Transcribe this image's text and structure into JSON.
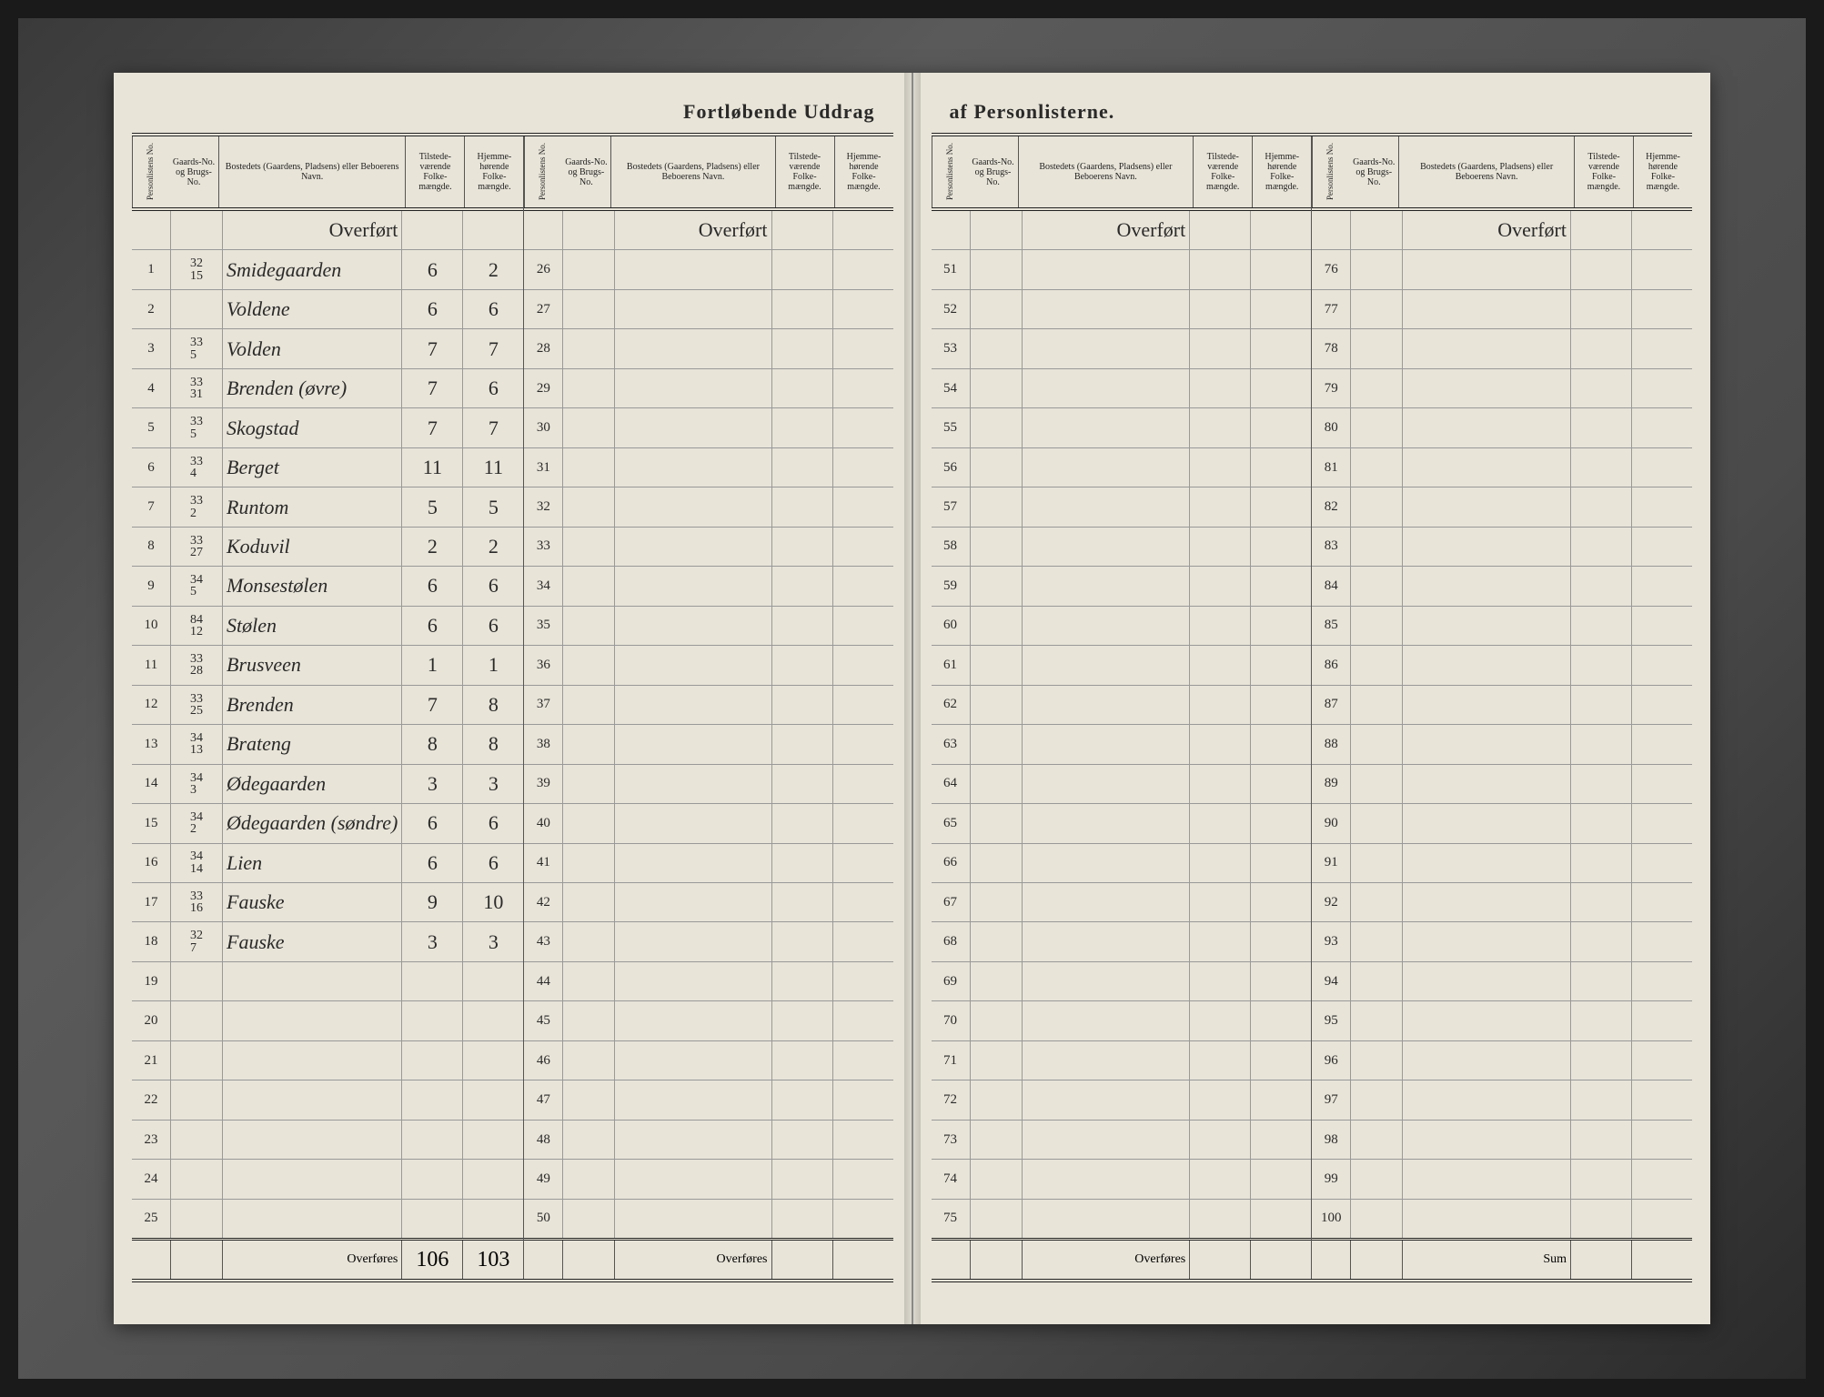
{
  "title_left": "Fortløbende Uddrag",
  "title_right": "af Personlisterne.",
  "headers": {
    "personliste_no": "Personlistens No.",
    "gaards_no": "Gaards-No. og Brugs-No.",
    "bosted": "Bostedets (Gaardens, Pladsens) eller Beboerens Navn.",
    "tilstede": "Tilstede-værende Folke-mængde.",
    "hjemme": "Hjemme-hørende Folke-mængde."
  },
  "overfort_label": "Overført",
  "overfores_label": "Overføres",
  "sum_label": "Sum",
  "blocks": [
    {
      "start": 1,
      "end": 25,
      "rows": [
        {
          "no": 1,
          "g1": "32",
          "g2": "15",
          "name": "Smidegaarden",
          "t": "6",
          "h": "2"
        },
        {
          "no": 2,
          "g1": "",
          "g2": "",
          "name": "Voldene",
          "t": "6",
          "h": "6"
        },
        {
          "no": 3,
          "g1": "33",
          "g2": "5",
          "name": "Volden",
          "t": "7",
          "h": "7"
        },
        {
          "no": 4,
          "g1": "33",
          "g2": "31",
          "name": "Brenden (øvre)",
          "t": "7",
          "h": "6"
        },
        {
          "no": 5,
          "g1": "33",
          "g2": "5",
          "name": "Skogstad",
          "t": "7",
          "h": "7"
        },
        {
          "no": 6,
          "g1": "33",
          "g2": "4",
          "name": "Berget",
          "t": "11",
          "h": "11"
        },
        {
          "no": 7,
          "g1": "33",
          "g2": "2",
          "name": "Runtom",
          "t": "5",
          "h": "5"
        },
        {
          "no": 8,
          "g1": "33",
          "g2": "27",
          "name": "Koduvil",
          "t": "2",
          "h": "2"
        },
        {
          "no": 9,
          "g1": "34",
          "g2": "5",
          "name": "Monsestølen",
          "t": "6",
          "h": "6"
        },
        {
          "no": 10,
          "g1": "84",
          "g2": "12",
          "name": "Stølen",
          "t": "6",
          "h": "6"
        },
        {
          "no": 11,
          "g1": "33",
          "g2": "28",
          "name": "Brusveen",
          "t": "1",
          "h": "1"
        },
        {
          "no": 12,
          "g1": "33",
          "g2": "25",
          "name": "Brenden",
          "t": "7",
          "h": "8"
        },
        {
          "no": 13,
          "g1": "34",
          "g2": "13",
          "name": "Brateng",
          "t": "8",
          "h": "8"
        },
        {
          "no": 14,
          "g1": "34",
          "g2": "3",
          "name": "Ødegaarden",
          "t": "3",
          "h": "3"
        },
        {
          "no": 15,
          "g1": "34",
          "g2": "2",
          "name": "Ødegaarden (søndre)",
          "t": "6",
          "h": "6"
        },
        {
          "no": 16,
          "g1": "34",
          "g2": "14",
          "name": "Lien",
          "t": "6",
          "h": "6"
        },
        {
          "no": 17,
          "g1": "33",
          "g2": "16",
          "name": "Fauske",
          "t": "9",
          "h": "10"
        },
        {
          "no": 18,
          "g1": "32",
          "g2": "7",
          "name": "Fauske",
          "t": "3",
          "h": "3"
        },
        {
          "no": 19
        },
        {
          "no": 20
        },
        {
          "no": 21
        },
        {
          "no": 22
        },
        {
          "no": 23
        },
        {
          "no": 24
        },
        {
          "no": 25
        }
      ],
      "footer": {
        "label": "Overføres",
        "t": "106",
        "h": "103"
      }
    },
    {
      "start": 26,
      "end": 50,
      "rows": [
        {
          "no": 26
        },
        {
          "no": 27
        },
        {
          "no": 28
        },
        {
          "no": 29
        },
        {
          "no": 30
        },
        {
          "no": 31
        },
        {
          "no": 32
        },
        {
          "no": 33
        },
        {
          "no": 34
        },
        {
          "no": 35
        },
        {
          "no": 36
        },
        {
          "no": 37
        },
        {
          "no": 38
        },
        {
          "no": 39
        },
        {
          "no": 40
        },
        {
          "no": 41
        },
        {
          "no": 42
        },
        {
          "no": 43
        },
        {
          "no": 44
        },
        {
          "no": 45
        },
        {
          "no": 46
        },
        {
          "no": 47
        },
        {
          "no": 48
        },
        {
          "no": 49
        },
        {
          "no": 50
        }
      ],
      "footer": {
        "label": "Overføres",
        "t": "",
        "h": ""
      }
    },
    {
      "start": 51,
      "end": 75,
      "rows": [
        {
          "no": 51
        },
        {
          "no": 52
        },
        {
          "no": 53
        },
        {
          "no": 54
        },
        {
          "no": 55
        },
        {
          "no": 56
        },
        {
          "no": 57
        },
        {
          "no": 58
        },
        {
          "no": 59
        },
        {
          "no": 60
        },
        {
          "no": 61
        },
        {
          "no": 62
        },
        {
          "no": 63
        },
        {
          "no": 64
        },
        {
          "no": 65
        },
        {
          "no": 66
        },
        {
          "no": 67
        },
        {
          "no": 68
        },
        {
          "no": 69
        },
        {
          "no": 70
        },
        {
          "no": 71
        },
        {
          "no": 72
        },
        {
          "no": 73
        },
        {
          "no": 74
        },
        {
          "no": 75
        }
      ],
      "footer": {
        "label": "Overføres",
        "t": "",
        "h": ""
      }
    },
    {
      "start": 76,
      "end": 100,
      "rows": [
        {
          "no": 76
        },
        {
          "no": 77
        },
        {
          "no": 78
        },
        {
          "no": 79
        },
        {
          "no": 80
        },
        {
          "no": 81
        },
        {
          "no": 82
        },
        {
          "no": 83
        },
        {
          "no": 84
        },
        {
          "no": 85
        },
        {
          "no": 86
        },
        {
          "no": 87
        },
        {
          "no": 88
        },
        {
          "no": 89
        },
        {
          "no": 90
        },
        {
          "no": 91
        },
        {
          "no": 92
        },
        {
          "no": 93
        },
        {
          "no": 94
        },
        {
          "no": 95
        },
        {
          "no": 96
        },
        {
          "no": 97
        },
        {
          "no": 98
        },
        {
          "no": 99
        },
        {
          "no": 100
        }
      ],
      "footer": {
        "label": "Sum",
        "t": "",
        "h": ""
      }
    }
  ],
  "colors": {
    "paper": "#e8e4d8",
    "ink": "#2a2a2a",
    "rule": "#999999",
    "heavy_rule": "#222222",
    "background": "#1a1a1a"
  }
}
